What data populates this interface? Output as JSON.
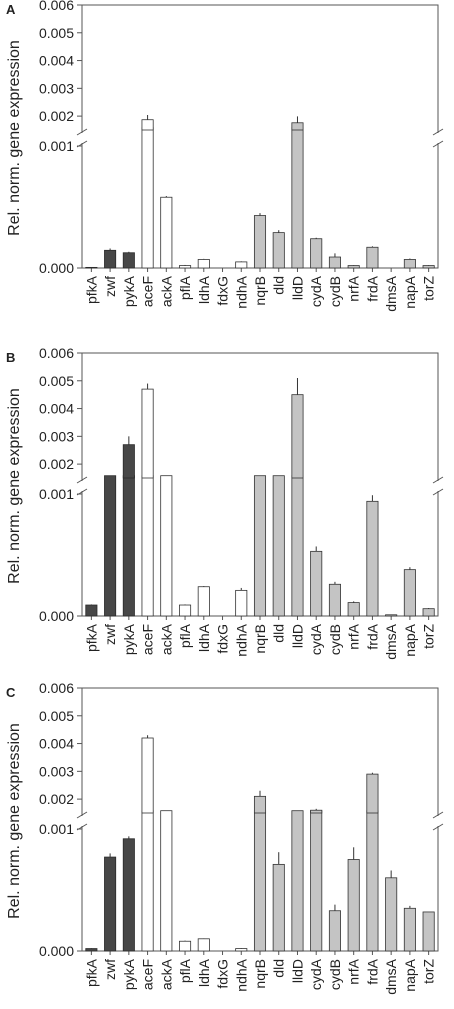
{
  "chart_data": [
    {
      "type": "bar",
      "panel_label": "A",
      "ylabel": "Rel. norm. gene expression",
      "y_axis": "broken",
      "lower_ylim": [
        0,
        0.001
      ],
      "upper_ylim": [
        0.0015,
        0.006
      ],
      "lower_ticks": [
        "0.000",
        "0.001"
      ],
      "upper_ticks": [
        "0.002",
        "0.003",
        "0.004",
        "0.005",
        "0.006"
      ],
      "upper_tick_values": [
        0.002,
        0.003,
        0.004,
        0.005,
        0.006
      ],
      "categories": [
        "pfkA",
        "zwf",
        "pykA",
        "aceF",
        "ackA",
        "pflA",
        "ldhA",
        "fdxG",
        "ndhA",
        "nqrB",
        "dld",
        "lldD",
        "cydA",
        "cydB",
        "nrfA",
        "frdA",
        "dmsA",
        "napA",
        "torZ"
      ],
      "groups": [
        "dark",
        "dark",
        "dark",
        "white",
        "white",
        "white",
        "white",
        "white",
        "white",
        "gray",
        "gray",
        "gray",
        "gray",
        "gray",
        "gray",
        "gray",
        "gray",
        "gray",
        "gray"
      ],
      "values": [
        5e-06,
        0.000145,
        0.000125,
        0.00187,
        0.00058,
        2e-05,
        7e-05,
        0.0,
        5e-05,
        0.00043,
        0.00029,
        0.00176,
        0.00024,
        9e-05,
        2e-05,
        0.00017,
        0.0,
        7e-05,
        2e-05
      ],
      "errors": [
        3e-06,
        1.5e-05,
        8e-06,
        0.00017,
        1e-05,
        5e-06,
        5e-06,
        0.0,
        5e-06,
        2e-05,
        2e-05,
        0.00023,
        8e-06,
        3e-05,
        3e-06,
        8e-06,
        0.0,
        8e-06,
        3e-06
      ]
    },
    {
      "type": "bar",
      "panel_label": "B",
      "ylabel": "Rel. norm. gene expression",
      "y_axis": "broken",
      "lower_ylim": [
        0,
        0.001
      ],
      "upper_ylim": [
        0.0015,
        0.006
      ],
      "lower_ticks": [
        "0.000",
        "0.001"
      ],
      "upper_ticks": [
        "0.002",
        "0.003",
        "0.004",
        "0.005",
        "0.006"
      ],
      "upper_tick_values": [
        0.002,
        0.003,
        0.004,
        0.005,
        0.006
      ],
      "categories": [
        "pfkA",
        "zwf",
        "pykA",
        "aceF",
        "ackA",
        "pflA",
        "ldhA",
        "fdxG",
        "ndhA",
        "nqrB",
        "dld",
        "lldD",
        "cydA",
        "cydB",
        "nrfA",
        "frdA",
        "dmsA",
        "napA",
        "torZ"
      ],
      "groups": [
        "dark",
        "dark",
        "dark",
        "white",
        "white",
        "white",
        "white",
        "white",
        "white",
        "gray",
        "gray",
        "gray",
        "gray",
        "gray",
        "gray",
        "gray",
        "gray",
        "gray",
        "gray"
      ],
      "values": [
        9e-05,
        0.00145,
        0.0027,
        0.0047,
        0.00115,
        9e-05,
        0.00024,
        0.0,
        0.00021,
        0.00115,
        0.00115,
        0.0045,
        0.00053,
        0.00026,
        0.00011,
        0.00094,
        1e-05,
        0.00038,
        6e-05
      ],
      "errors": [
        5e-06,
        0.0,
        0.0003,
        0.0002,
        0.0,
        5e-06,
        5e-06,
        0.0,
        2e-05,
        0.0,
        0.0,
        0.0006,
        4e-05,
        2e-05,
        1e-05,
        5e-05,
        0.0,
        2e-05,
        5e-06
      ]
    },
    {
      "type": "bar",
      "panel_label": "C",
      "ylabel": "Rel. norm. gene expression",
      "y_axis": "broken",
      "lower_ylim": [
        0,
        0.001
      ],
      "upper_ylim": [
        0.0015,
        0.006
      ],
      "lower_ticks": [
        "0.000",
        "0.001"
      ],
      "upper_ticks": [
        "0.002",
        "0.003",
        "0.004",
        "0.005",
        "0.006"
      ],
      "upper_tick_values": [
        0.002,
        0.003,
        0.004,
        0.005,
        0.006
      ],
      "categories": [
        "pfkA",
        "zwf",
        "pykA",
        "aceF",
        "ackA",
        "pflA",
        "ldhA",
        "fdxG",
        "ndhA",
        "nqrB",
        "dld",
        "lldD",
        "cydA",
        "cydB",
        "nrfA",
        "frdA",
        "dmsA",
        "napA",
        "torZ"
      ],
      "groups": [
        "dark",
        "dark",
        "dark",
        "white",
        "white",
        "white",
        "white",
        "white",
        "white",
        "gray",
        "gray",
        "gray",
        "gray",
        "gray",
        "gray",
        "gray",
        "gray",
        "gray",
        "gray"
      ],
      "values": [
        2e-05,
        0.00077,
        0.00092,
        0.0042,
        0.00115,
        8e-05,
        0.0001,
        0.0,
        2e-05,
        0.0021,
        0.00071,
        0.00115,
        0.0016,
        0.00033,
        0.00075,
        0.0029,
        0.0006,
        0.00035,
        0.00032
      ],
      "errors": [
        3e-06,
        3e-05,
        2e-05,
        0.0001,
        0.0,
        5e-06,
        3e-06,
        0.0,
        3e-06,
        0.0002,
        0.0001,
        0.0,
        5e-05,
        5e-05,
        0.0001,
        5e-05,
        6e-05,
        2e-05,
        0.0
      ]
    }
  ],
  "colors": {
    "dark": "#474747",
    "white": "#ffffff",
    "gray": "#c4c4c4",
    "edge": "#333333",
    "axis": "#555555"
  }
}
